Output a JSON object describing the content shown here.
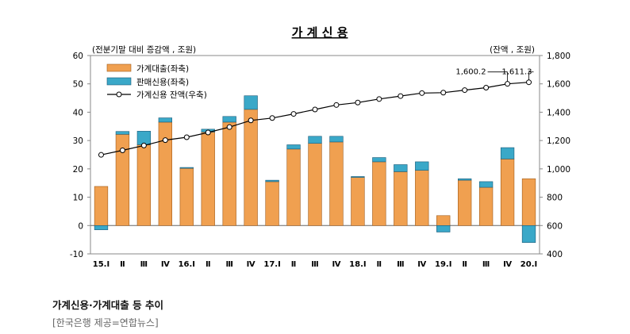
{
  "caption": "가계신용·가계대출 등 추이",
  "credit": "[한국은행 제공=연합뉴스]",
  "colors": {
    "loan": "#f0a050",
    "credit": "#3aa8c8",
    "line": "#000000",
    "bg": "#ffffff"
  },
  "chart_data": {
    "type": "bar",
    "title": "가 계 신 용",
    "left_unit": "(전분기말 대비 증감액 , 조원)",
    "right_unit": "(잔액 , 조원)",
    "categories": [
      "15.Ⅰ",
      "Ⅱ",
      "Ⅲ",
      "Ⅳ",
      "16.Ⅰ",
      "Ⅱ",
      "Ⅲ",
      "Ⅳ",
      "17.Ⅰ",
      "Ⅱ",
      "Ⅲ",
      "Ⅳ",
      "18.Ⅰ",
      "Ⅱ",
      "Ⅲ",
      "Ⅳ",
      "19.Ⅰ",
      "Ⅱ",
      "Ⅲ",
      "Ⅳ",
      "20.Ⅰ"
    ],
    "ylim": [
      -10,
      60
    ],
    "yticks": [
      -10,
      0,
      10,
      20,
      30,
      40,
      50,
      60
    ],
    "y2lim": [
      400,
      1800
    ],
    "y2ticks": [
      "400",
      "600",
      "800",
      "1,000",
      "1,200",
      "1,400",
      "1,600",
      "1,800"
    ],
    "legend": [
      "가계대출(좌축)",
      "판매신용(좌축)",
      "가계신용 잔액(우축)"
    ],
    "series": [
      {
        "name": "가계대출(좌축)",
        "axis": "left",
        "values": [
          13.8,
          32.2,
          28.5,
          36.5,
          20.2,
          33.0,
          36.5,
          41.0,
          15.5,
          27.0,
          29.0,
          29.5,
          17.0,
          22.5,
          19.0,
          19.5,
          3.5,
          16.0,
          13.5,
          23.5,
          16.5
        ]
      },
      {
        "name": "판매신용(좌축)",
        "axis": "left",
        "values": [
          -1.5,
          1.0,
          4.8,
          1.5,
          0.3,
          1.0,
          2.0,
          4.8,
          0.5,
          1.5,
          2.5,
          2.0,
          0.3,
          1.5,
          2.5,
          3.0,
          -2.3,
          0.5,
          2.0,
          4.0,
          -6.0
        ]
      },
      {
        "name": "가계신용 잔액(우축)",
        "axis": "right",
        "type": "line",
        "values": [
          1099,
          1131,
          1165,
          1203,
          1223,
          1257,
          1295,
          1342,
          1359,
          1388,
          1419,
          1451,
          1468,
          1493,
          1514,
          1535,
          1538,
          1556,
          1573,
          1600.2,
          1611.3
        ]
      }
    ],
    "annotations": [
      {
        "index": 19,
        "text": "1,600.2"
      },
      {
        "index": 20,
        "text": "1,611.3"
      }
    ]
  }
}
